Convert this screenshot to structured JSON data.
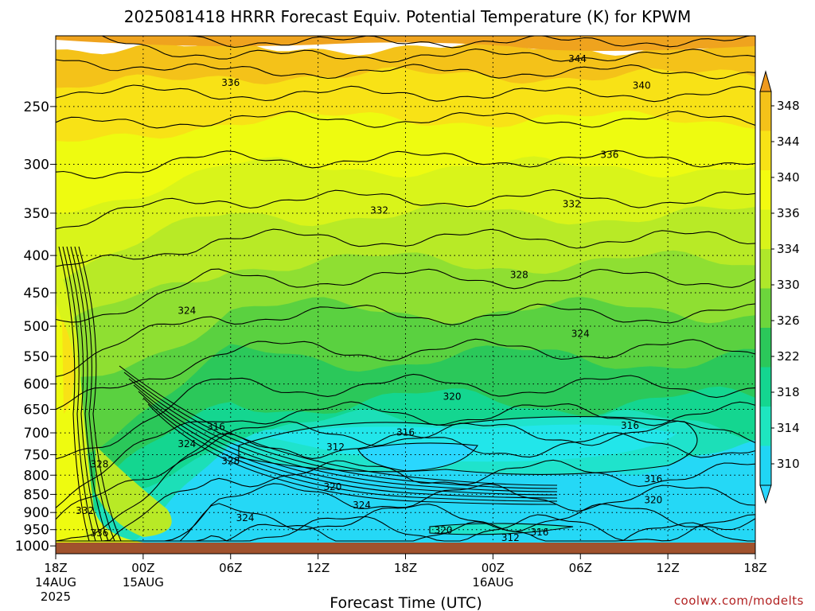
{
  "chart_data": {
    "type": "heatmap",
    "title": "2025081418 HRRR Forecast Equiv. Potential Temperature (K) for KPWM",
    "xlabel": "Forecast Time (UTC)",
    "ylabel": "",
    "credit": "coolwx.com/modelts",
    "x_ticks": [
      {
        "hour": 0,
        "label": "18Z",
        "date": "14AUG",
        "year": "2025"
      },
      {
        "hour": 6,
        "label": "00Z",
        "date": "15AUG",
        "year": ""
      },
      {
        "hour": 12,
        "label": "06Z",
        "date": "",
        "year": ""
      },
      {
        "hour": 18,
        "label": "12Z",
        "date": "",
        "year": ""
      },
      {
        "hour": 24,
        "label": "18Z",
        "date": "",
        "year": ""
      },
      {
        "hour": 30,
        "label": "00Z",
        "date": "16AUG",
        "year": ""
      },
      {
        "hour": 36,
        "label": "06Z",
        "date": "",
        "year": ""
      },
      {
        "hour": 42,
        "label": "12Z",
        "date": "",
        "year": ""
      },
      {
        "hour": 48,
        "label": "18Z",
        "date": "",
        "year": ""
      }
    ],
    "xlim": [
      0,
      48
    ],
    "y_ticks": [
      250,
      300,
      350,
      400,
      450,
      500,
      550,
      600,
      650,
      700,
      750,
      800,
      850,
      900,
      950,
      1000
    ],
    "ylim": [
      1025,
      200
    ],
    "y_scale": "log",
    "grid": true,
    "colorbar": {
      "labels": [
        348,
        344,
        340,
        336,
        334,
        330,
        326,
        322,
        318,
        314,
        310
      ],
      "colors": [
        "#ef9a1f",
        "#f4c219",
        "#f8e216",
        "#f3fb10",
        "#d9f41a",
        "#afe82a",
        "#6cd63c",
        "#2bc85a",
        "#14d690",
        "#1ee6c0",
        "#20d6f4",
        "#2ad7fe"
      ]
    },
    "contour_interval": 2,
    "contour_labels": [
      {
        "hour": 35.8,
        "p": 215,
        "value": 344
      },
      {
        "hour": 12,
        "p": 232,
        "value": 336
      },
      {
        "hour": 40.2,
        "p": 234,
        "value": 340
      },
      {
        "hour": 38,
        "p": 291,
        "value": 336
      },
      {
        "hour": 22.2,
        "p": 347,
        "value": 332
      },
      {
        "hour": 35.4,
        "p": 340,
        "value": 332
      },
      {
        "hour": 31.8,
        "p": 425,
        "value": 328
      },
      {
        "hour": 9,
        "p": 476,
        "value": 324
      },
      {
        "hour": 36,
        "p": 512,
        "value": 324
      },
      {
        "hour": 27.2,
        "p": 624,
        "value": 320
      },
      {
        "hour": 11,
        "p": 687,
        "value": 316
      },
      {
        "hour": 24,
        "p": 699,
        "value": 316
      },
      {
        "hour": 39.4,
        "p": 684,
        "value": 316
      },
      {
        "hour": 19.2,
        "p": 732,
        "value": 312
      },
      {
        "hour": 9,
        "p": 725,
        "value": 324
      },
      {
        "hour": 3,
        "p": 773,
        "value": 328
      },
      {
        "hour": 12,
        "p": 765,
        "value": 328
      },
      {
        "hour": 19,
        "p": 830,
        "value": 320
      },
      {
        "hour": 21,
        "p": 880,
        "value": 324
      },
      {
        "hour": 41,
        "p": 810,
        "value": 316
      },
      {
        "hour": 41,
        "p": 865,
        "value": 320
      },
      {
        "hour": 2,
        "p": 895,
        "value": 332
      },
      {
        "hour": 13,
        "p": 915,
        "value": 324
      },
      {
        "hour": 26.6,
        "p": 952,
        "value": 320
      },
      {
        "hour": 33.2,
        "p": 958,
        "value": 316
      },
      {
        "hour": 31.2,
        "p": 975,
        "value": 312
      },
      {
        "hour": 3,
        "p": 960,
        "value": 336
      },
      {
        "hour": 9,
        "p": 1002,
        "value": 336
      }
    ]
  }
}
